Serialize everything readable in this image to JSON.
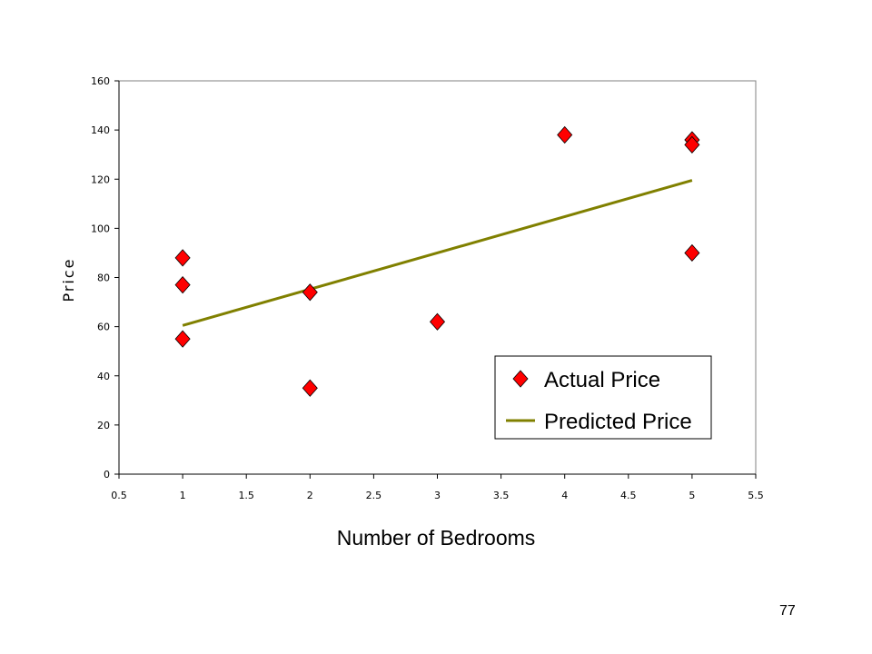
{
  "chart_data": {
    "type": "scatter",
    "xlabel": "Number of Bedrooms",
    "ylabel": "Price",
    "xlim": [
      0.5,
      5.5
    ],
    "ylim": [
      0,
      160
    ],
    "x_ticks": [
      "0.5",
      "1",
      "1.5",
      "2",
      "2.5",
      "3",
      "3.5",
      "4",
      "4.5",
      "5",
      "5.5"
    ],
    "y_ticks": [
      "0",
      "20",
      "40",
      "60",
      "80",
      "100",
      "120",
      "140",
      "160"
    ],
    "grid": false,
    "legend_position": "bottom-right",
    "series": [
      {
        "name": "Actual Price",
        "kind": "scatter",
        "marker": "diamond",
        "color": "#ff0000",
        "points": [
          [
            1,
            88
          ],
          [
            1,
            77
          ],
          [
            1,
            55
          ],
          [
            2,
            74
          ],
          [
            2,
            35
          ],
          [
            3,
            62
          ],
          [
            4,
            138
          ],
          [
            5,
            136
          ],
          [
            5,
            134
          ],
          [
            5,
            90
          ]
        ]
      },
      {
        "name": "Predicted Price",
        "kind": "line",
        "color": "#808000",
        "points": [
          [
            1,
            60.5
          ],
          [
            5,
            119.5
          ]
        ]
      }
    ]
  },
  "page_number": "77"
}
